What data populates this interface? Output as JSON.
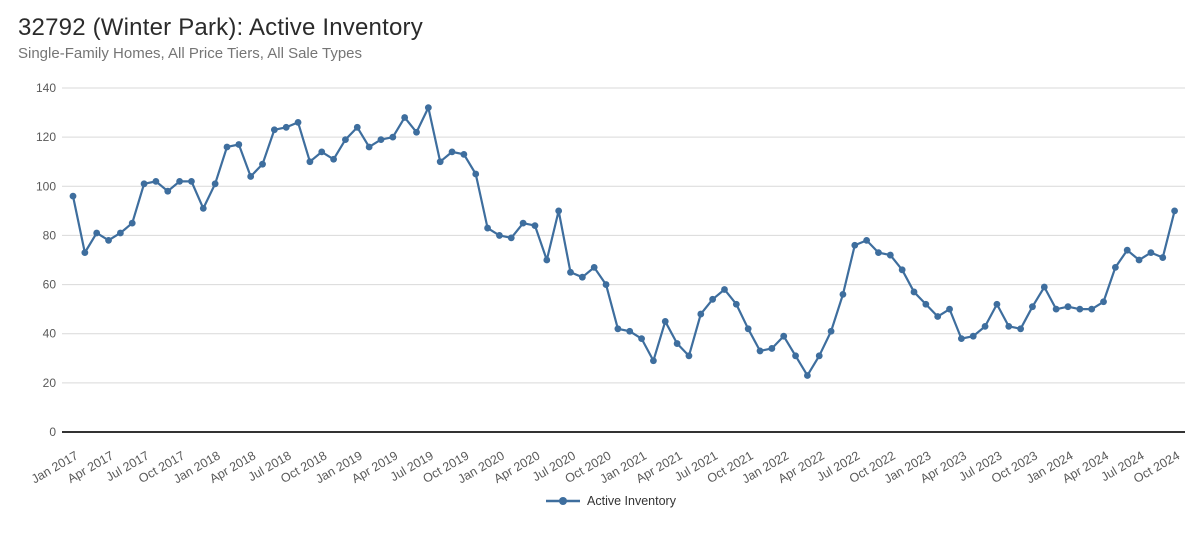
{
  "chart": {
    "title": "32792 (Winter Park): Active Inventory",
    "subtitle": "Single-Family Homes, All Price Tiers, All Sale Types",
    "colors": {
      "line": "#3e6e9e",
      "grid": "#d9d9d9",
      "axis_line": "#333333",
      "tick_text": "#595959",
      "title_text": "#2b2b2b",
      "subtitle_text": "#757575",
      "background": "#ffffff"
    }
  },
  "chart_data": {
    "type": "line",
    "title": "32792 (Winter Park): Active Inventory",
    "subtitle": "Single-Family Homes, All Price Tiers, All Sale Types",
    "ylabel": "",
    "xlabel": "",
    "ylim": [
      0,
      140
    ],
    "ytick_step": 20,
    "grid": "horizontal",
    "legend_position": "bottom-center",
    "marker": "circle",
    "months_per_tick": 3,
    "x_tick_labels": [
      "Jan 2017",
      "Apr 2017",
      "Jul 2017",
      "Oct 2017",
      "Jan 2018",
      "Apr 2018",
      "Jul 2018",
      "Oct 2018",
      "Jan 2019",
      "Apr 2019",
      "Jul 2019",
      "Oct 2019",
      "Jan 2020",
      "Apr 2020",
      "Jul 2020",
      "Oct 2020",
      "Jan 2021",
      "Apr 2021",
      "Jul 2021",
      "Oct 2021",
      "Jan 2022",
      "Apr 2022",
      "Jul 2022",
      "Oct 2022",
      "Jan 2023",
      "Apr 2023",
      "Jul 2023",
      "Oct 2023",
      "Jan 2024",
      "Apr 2024",
      "Jul 2024",
      "Oct 2024"
    ],
    "x_start": "Jan 2017",
    "x_end": "Oct 2024",
    "series": [
      {
        "name": "Active Inventory",
        "values": [
          96,
          73,
          81,
          78,
          81,
          85,
          101,
          102,
          98,
          102,
          102,
          91,
          101,
          116,
          117,
          104,
          109,
          123,
          124,
          126,
          110,
          114,
          111,
          119,
          124,
          116,
          119,
          120,
          128,
          122,
          132,
          110,
          114,
          113,
          105,
          83,
          80,
          79,
          85,
          84,
          70,
          90,
          65,
          63,
          67,
          60,
          42,
          41,
          38,
          29,
          45,
          36,
          31,
          48,
          54,
          58,
          52,
          42,
          33,
          34,
          39,
          31,
          23,
          31,
          41,
          56,
          76,
          78,
          73,
          72,
          66,
          57,
          52,
          47,
          50,
          38,
          39,
          43,
          52,
          43,
          42,
          51,
          59,
          50,
          51,
          50,
          50,
          53,
          67,
          74,
          70,
          73,
          71,
          90
        ]
      }
    ]
  }
}
